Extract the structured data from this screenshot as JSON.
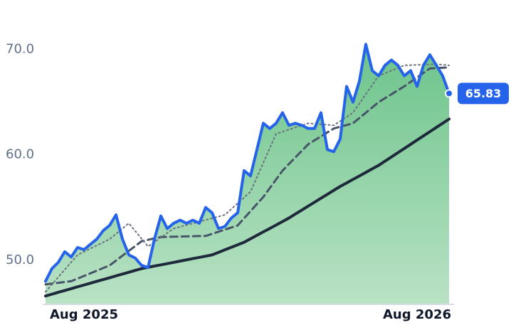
{
  "chart_data": {
    "type": "line",
    "categories": [
      null,
      null,
      null,
      null,
      null,
      null,
      "Aug 2025",
      null,
      null,
      null,
      null,
      null,
      null,
      null,
      null,
      null,
      null,
      null,
      null,
      null,
      null,
      null,
      null,
      null,
      null,
      null,
      null,
      null,
      null,
      null,
      null,
      null,
      null,
      null,
      null,
      null,
      null,
      null,
      null,
      null,
      null,
      null,
      null,
      null,
      null,
      null,
      null,
      null,
      null,
      null,
      null,
      null,
      null,
      null,
      null,
      null,
      null,
      null,
      "Aug 2026",
      null,
      null,
      null,
      null,
      null
    ],
    "series": [
      {
        "color": "#2563eb",
        "dash": "solid",
        "width": 4,
        "fill": true,
        "label_last": true,
        "values": [
          48.0,
          49.2,
          49.8,
          50.8,
          50.3,
          51.2,
          51.0,
          51.5,
          52.0,
          52.8,
          53.3,
          54.3,
          52.0,
          50.5,
          50.2,
          49.5,
          49.3,
          52.0,
          54.2,
          53.0,
          53.5,
          53.8,
          53.5,
          53.8,
          53.5,
          55.0,
          54.5,
          53.0,
          53.2,
          54.0,
          54.5,
          58.5,
          58.0,
          60.5,
          63.0,
          62.5,
          63.0,
          64.0,
          62.8,
          63.0,
          62.8,
          62.5,
          62.5,
          64.0,
          60.5,
          60.3,
          61.5,
          66.5,
          65.0,
          67.0,
          70.5,
          68.0,
          67.5,
          68.5,
          69.0,
          68.5,
          67.5,
          68.0,
          66.5,
          68.5,
          69.5,
          68.5,
          67.5,
          65.83
        ]
      },
      {
        "color": "#6b7280",
        "dash": "dotted",
        "width": 2,
        "values": [
          47,
          47.7,
          48.4,
          49.1,
          49.8,
          50.5,
          50.8,
          51.1,
          51.4,
          51.7,
          52.0,
          52.5,
          53.0,
          53.5,
          52.77,
          52.03,
          51.3,
          51.73,
          52.15,
          52.58,
          53.0,
          53.16,
          53.33,
          53.49,
          53.65,
          53.81,
          53.98,
          54.14,
          54.3,
          54.85,
          55.4,
          55.95,
          56.5,
          57.88,
          59.25,
          60.63,
          62.0,
          62.2,
          62.4,
          62.6,
          62.8,
          63.0,
          62.95,
          62.9,
          62.85,
          62.8,
          63.2,
          63.6,
          64.0,
          64.88,
          65.75,
          66.63,
          67.5,
          67.75,
          68.0,
          68.25,
          68.5,
          68.52,
          68.54,
          68.56,
          68.58,
          68.6,
          68.55,
          68.5
        ]
      },
      {
        "color": "#475569",
        "dash": "dashed",
        "width": 3,
        "values": [
          47.7,
          47.78,
          47.85,
          47.93,
          48.0,
          48.25,
          48.5,
          48.75,
          49.0,
          49.25,
          49.5,
          49.96,
          50.42,
          50.88,
          51.34,
          51.8,
          51.93,
          52.07,
          52.2,
          52.21,
          52.23,
          52.24,
          52.26,
          52.27,
          52.29,
          52.3,
          52.5,
          52.7,
          52.9,
          53.1,
          53.3,
          53.98,
          54.65,
          55.33,
          56.0,
          56.83,
          57.67,
          58.5,
          59.13,
          59.75,
          60.38,
          61.0,
          61.38,
          61.75,
          62.13,
          62.5,
          62.67,
          62.83,
          63.0,
          63.5,
          64.0,
          64.5,
          65.0,
          65.38,
          65.75,
          66.13,
          66.5,
          66.93,
          67.35,
          67.78,
          68.2,
          68.23,
          68.27,
          68.3
        ]
      },
      {
        "color": "#1e293b",
        "dash": "solid",
        "width": 4,
        "values": [
          46.6,
          46.77,
          46.95,
          47.12,
          47.29,
          47.47,
          47.64,
          47.81,
          47.99,
          48.16,
          48.33,
          48.51,
          48.68,
          48.85,
          49.03,
          49.2,
          49.32,
          49.44,
          49.55,
          49.67,
          49.79,
          49.91,
          50.03,
          50.15,
          50.26,
          50.38,
          50.5,
          50.74,
          50.98,
          51.22,
          51.46,
          51.7,
          52.03,
          52.36,
          52.69,
          53.01,
          53.34,
          53.67,
          54.0,
          54.38,
          54.75,
          55.13,
          55.5,
          55.88,
          56.25,
          56.63,
          57.0,
          57.33,
          57.67,
          58.0,
          58.33,
          58.67,
          59.0,
          59.4,
          59.8,
          60.2,
          60.6,
          61.0,
          61.4,
          61.8,
          62.2,
          62.6,
          63.0,
          63.4
        ]
      }
    ],
    "ylim": [
      45.8,
      72
    ],
    "yticks": [
      {
        "value": 50,
        "label": "50.0"
      },
      {
        "value": 60,
        "label": "60.0"
      },
      {
        "value": 70,
        "label": "70.0"
      }
    ],
    "grid": false
  }
}
